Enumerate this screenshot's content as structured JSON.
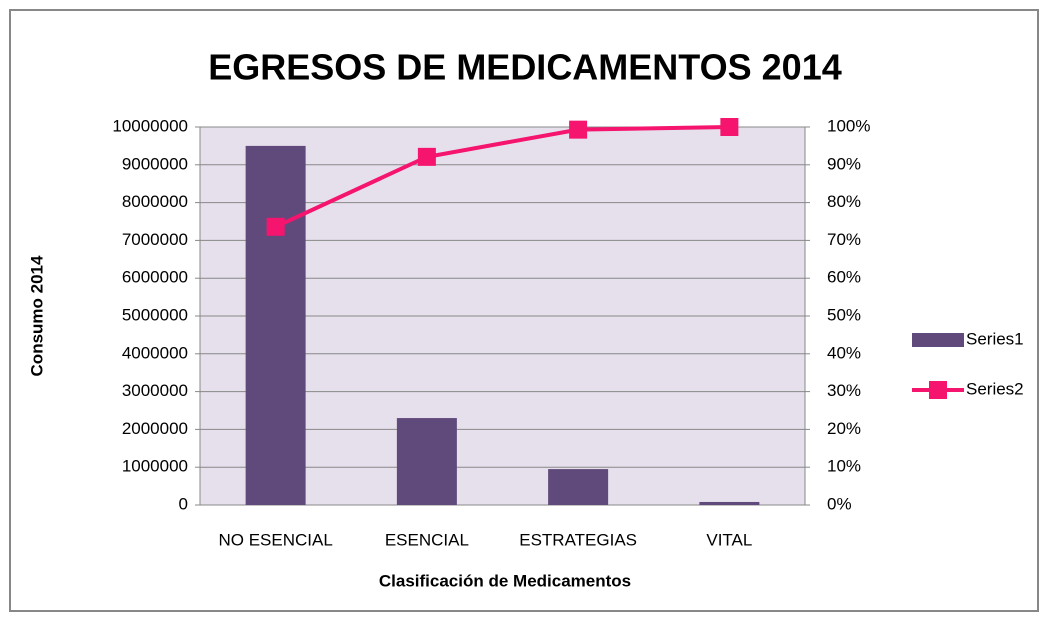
{
  "chart_data": {
    "type": "bar_line",
    "title": "EGRESOS DE MEDICAMENTOS 2014",
    "y_label": "Consumo 2014",
    "x_label": "Clasificación de Medicamentos",
    "categories": [
      "NO ESENCIAL",
      "ESENCIAL",
      "ESTRATEGIAS",
      "VITAL"
    ],
    "series": [
      {
        "name": "Series1",
        "type": "bar",
        "color": "#604a7b",
        "values": [
          9500000,
          2300000,
          950000,
          80000
        ]
      },
      {
        "name": "Series2",
        "type": "line",
        "axis": "y2",
        "color": "#f5146e",
        "values": [
          73.6,
          92.1,
          99.3,
          100
        ]
      }
    ],
    "ylim": [
      0,
      10000000
    ],
    "yticks": [
      0,
      1000000,
      2000000,
      3000000,
      4000000,
      5000000,
      6000000,
      7000000,
      8000000,
      9000000,
      10000000
    ],
    "y2lim": [
      0,
      100
    ],
    "y2ticks": [
      {
        "value": 0,
        "label": "0%"
      },
      {
        "value": 10,
        "label": "10%"
      },
      {
        "value": 20,
        "label": "20%"
      },
      {
        "value": 30,
        "label": "30%"
      },
      {
        "value": 40,
        "label": "40%"
      },
      {
        "value": 50,
        "label": "50%"
      },
      {
        "value": 60,
        "label": "60%"
      },
      {
        "value": 70,
        "label": "70%"
      },
      {
        "value": 80,
        "label": "80%"
      },
      {
        "value": 90,
        "label": "90%"
      },
      {
        "value": 100,
        "label": "100%"
      }
    ],
    "grid": true,
    "legend": "right"
  }
}
